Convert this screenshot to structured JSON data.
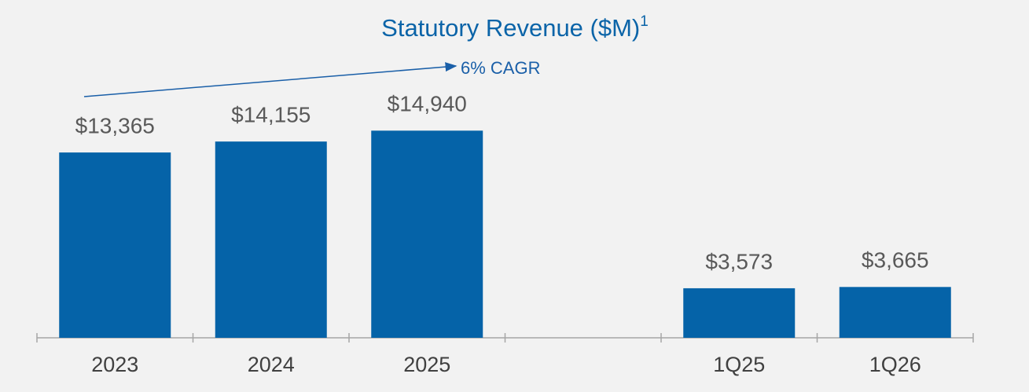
{
  "chart_data": {
    "type": "bar",
    "title": "Statutory Revenue ($M)",
    "title_footnote": "1",
    "annotation": "6% CAGR",
    "categories": [
      "2023",
      "2024",
      "2025",
      null,
      "1Q25",
      "1Q26"
    ],
    "values": [
      13365,
      14155,
      14940,
      null,
      3573,
      3665
    ],
    "value_labels": [
      "$13,365",
      "$14,155",
      "$14,940",
      null,
      "$3,573",
      "$3,665"
    ],
    "color": "#0563a8",
    "ylim": [
      0,
      20000
    ]
  }
}
